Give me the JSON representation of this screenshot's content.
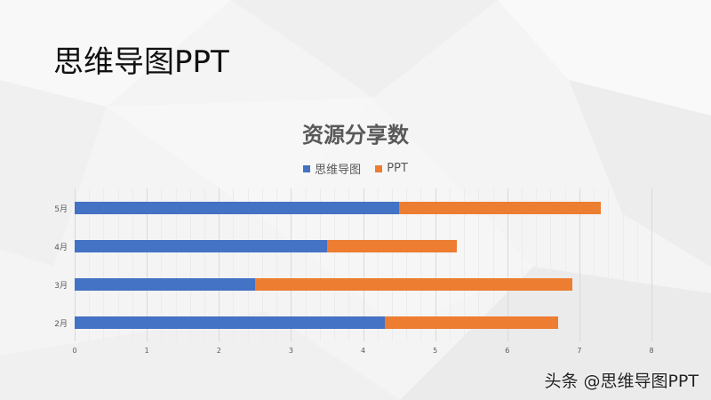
{
  "slide": {
    "title": "思维导图PPT",
    "watermark": "头条 @思维导图PPT"
  },
  "colors": {
    "series1": "#4472c4",
    "series2": "#ed7d31",
    "background": "#f3f3f3"
  },
  "chart_data": {
    "type": "bar",
    "orientation": "horizontal",
    "stacked": true,
    "title": "资源分享数",
    "categories": [
      "2月",
      "3月",
      "4月",
      "5月"
    ],
    "series": [
      {
        "name": "思维导图",
        "color": "#4472c4",
        "values": [
          4.3,
          2.5,
          3.5,
          4.5
        ]
      },
      {
        "name": "PPT",
        "color": "#ed7d31",
        "values": [
          2.4,
          4.4,
          1.8,
          2.8
        ]
      }
    ],
    "xlabel": "",
    "ylabel": "",
    "xlim": [
      0,
      8
    ],
    "x_ticks": [
      "0",
      "1",
      "2",
      "3",
      "4",
      "5",
      "6",
      "7",
      "8"
    ],
    "grid": true,
    "legend_position": "top"
  }
}
